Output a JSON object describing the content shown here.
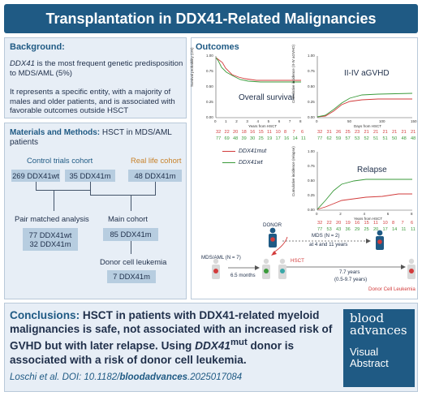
{
  "title": "Transplantation in DDX41-Related Malignancies",
  "background": {
    "heading": "Background:",
    "p1_italic": "DDX41",
    "p1_rest": " is the most frequent genetic predisposition to MDS/AML (5%)",
    "p2": "It represents a specific entity, with a majority of males and older patients, and is associated with favorable outcomes outside HSCT"
  },
  "methods": {
    "heading": "Materials and Methods:",
    "heading_rest": " HSCT in MDS/AML patients",
    "control_label": "Control trials cohort",
    "real_life_label": "Real life cohort",
    "box_wt": "269 DDX41wt",
    "box_m35": "35 DDX41m",
    "box_m48": "48 DDX41m",
    "pair_label": "Pair matched analysis",
    "pair_line1": "77 DDX41wt",
    "pair_line2": "32 DDX41m",
    "main_label": "Main cohort",
    "main_box": "85 DDX41m",
    "donor_label": "Donor cell leukemia",
    "donor_box": "7 DDX41m"
  },
  "outcomes": {
    "heading": "Outcomes",
    "os_title": "Overall survival",
    "gvhd_title": "II-IV aGVHD",
    "relapse_title": "Relapse",
    "os_ylabel": "Survival probability (OS)",
    "gvhd_ylabel": "Cumulative incidence (II-IV aGVHD)",
    "relapse_ylabel": "Cumulative incidence (relapse)",
    "years_label": "Years from HSCT",
    "days_label": "Days from HSCT",
    "legend_mut": "DDX41mut",
    "legend_wt": "DDX41wt",
    "os_y_ticks": [
      "1.00",
      "0.75",
      "0.50",
      "0.25",
      "0.00"
    ],
    "os_x_ticks": [
      "0",
      "1",
      "2",
      "3",
      "4",
      "5",
      "6",
      "7",
      "8"
    ],
    "gvhd_y_ticks": [
      "1.00",
      "0.75",
      "0.50",
      "0.25",
      "0.00"
    ],
    "gvhd_x_ticks": [
      "0",
      "50",
      "100",
      "150"
    ],
    "relapse_y_ticks": [
      "1.00",
      "0.75",
      "0.50",
      "0.25",
      "0.00"
    ],
    "relapse_x_ticks": [
      "0",
      "2",
      "4",
      "6",
      "8"
    ],
    "os_risk_red": [
      "32",
      "22",
      "20",
      "18",
      "16",
      "15",
      "11",
      "10",
      "8",
      "7",
      "6"
    ],
    "os_risk_green": [
      "77",
      "69",
      "48",
      "39",
      "30",
      "25",
      "19",
      "17",
      "16",
      "14",
      "11"
    ],
    "gvhd_risk_red": [
      "32",
      "31",
      "26",
      "25",
      "23",
      "21",
      "21",
      "21",
      "21",
      "21",
      "21"
    ],
    "gvhd_risk_green": [
      "77",
      "62",
      "59",
      "57",
      "53",
      "52",
      "51",
      "51",
      "50",
      "48",
      "48"
    ],
    "relapse_risk_red": [
      "32",
      "22",
      "20",
      "19",
      "16",
      "15",
      "11",
      "10",
      "8",
      "7",
      "6"
    ],
    "relapse_risk_green": [
      "77",
      "53",
      "43",
      "36",
      "29",
      "25",
      "20",
      "17",
      "14",
      "11",
      "11"
    ],
    "colors": {
      "mut": "#d23b3b",
      "wt": "#3a9a3a"
    },
    "diagram": {
      "donor": "DONOR",
      "mds_later": "MDS (N = 2)",
      "mds_later_2": "at 4 and 11 years",
      "mds_aml": "MDS/AML (N = 7)",
      "months": "6.5 months",
      "hsct": "HSCT",
      "years": "7.7 years",
      "years_range": "(0.5-9.7 years)",
      "dcl": "Donor Cell Leukemia"
    }
  },
  "conclusions": {
    "heading": "Conclusions:",
    "text_a": " HSCT in patients with DDX41-related myeloid malignancies is safe, not associated with an increased risk of GVHD but with later relapse. Using ",
    "text_italic": "DDX41",
    "text_sup": "mut",
    "text_b": " donor is associated with a risk of donor cell leukemia.",
    "cite_a": "Loschi et al. DOI: 10.1182/",
    "cite_italic": "bloodadvances",
    "cite_b": ".2025017084"
  },
  "logo": {
    "line1": "blood",
    "line2": "advances",
    "line3": "Visual",
    "line4": "Abstract"
  }
}
